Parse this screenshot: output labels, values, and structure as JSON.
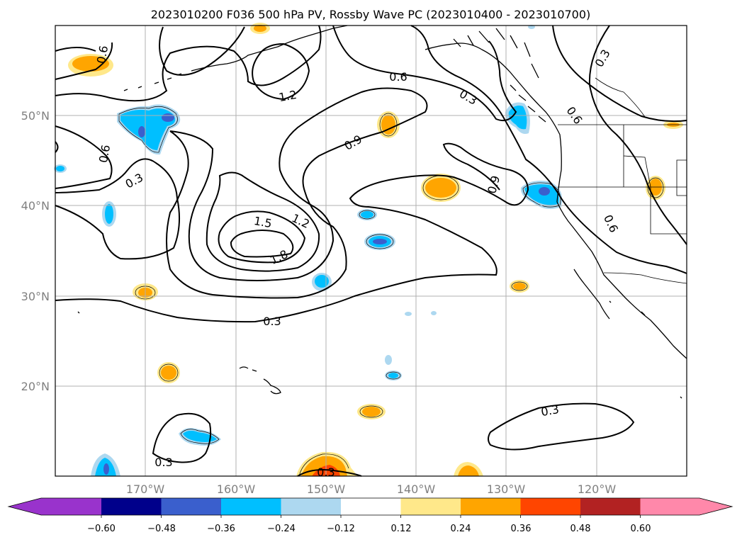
{
  "title": "2023010200 F036 500 hPa PV, Rossby Wave PC (2023010400 - 2023010700)",
  "map": {
    "lat_labels": [
      "50°N",
      "40°N",
      "30°N",
      "20°N"
    ],
    "lon_labels": [
      "170°W",
      "160°W",
      "150°W",
      "140°W",
      "130°W",
      "120°W"
    ],
    "lon_range": [
      -180,
      -110
    ],
    "lat_range": [
      10,
      60
    ]
  },
  "contour_labels": [
    "0.6",
    "1.2",
    "0.6",
    "0.3",
    "0.3",
    "0.6",
    "0.3",
    "0.9",
    "0.9",
    "0.6",
    "0.6",
    "1.5",
    "1.2",
    "1.8",
    "0.3",
    "0.3",
    "0.3",
    "0.3"
  ],
  "colorbar": {
    "ticks": [
      "−0.60",
      "−0.48",
      "−0.36",
      "−0.24",
      "−0.12",
      "0.12",
      "0.24",
      "0.36",
      "0.48",
      "0.60"
    ],
    "colors": [
      "#9933cc",
      "#00008b",
      "#3a5fcd",
      "#00bfff",
      "#add8f0",
      "#ffffff",
      "#ffe88a",
      "#ffa500",
      "#ff4500",
      "#b22222",
      "#ff88aa"
    ]
  }
}
